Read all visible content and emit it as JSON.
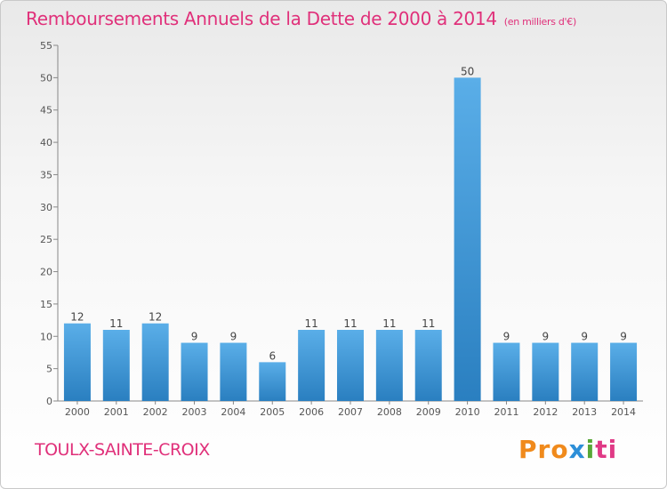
{
  "chart_data": {
    "type": "bar",
    "title": "Remboursements Annuels de la Dette de 2000 à 2014",
    "subtitle": "(en milliers d'€)",
    "categories": [
      "2000",
      "2001",
      "2002",
      "2003",
      "2004",
      "2005",
      "2006",
      "2007",
      "2008",
      "2009",
      "2010",
      "2011",
      "2012",
      "2013",
      "2014"
    ],
    "values": [
      12,
      11,
      12,
      9,
      9,
      6,
      11,
      11,
      11,
      11,
      50,
      9,
      9,
      9,
      9
    ],
    "ylim": [
      0,
      55
    ],
    "yticks": [
      0,
      5,
      10,
      15,
      20,
      25,
      30,
      35,
      40,
      45,
      50,
      55
    ],
    "xlabel": "",
    "ylabel": "",
    "grid": false
  },
  "footer": {
    "town": "TOULX-SAINTE-CROIX",
    "logo_parts": [
      "Pro",
      "x",
      "i",
      "ti"
    ]
  },
  "colors": {
    "accent": "#e0307a",
    "bar_light": "#5aaee8",
    "bar_dark": "#2a7fc0"
  }
}
